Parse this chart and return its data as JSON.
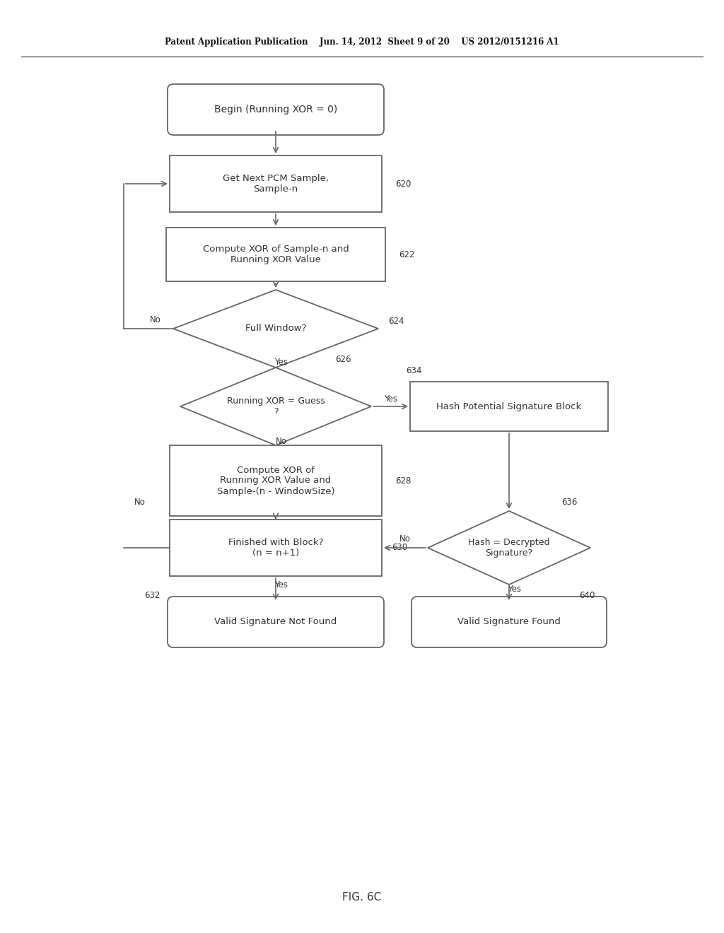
{
  "bg_color": "#ffffff",
  "line_color": "#666666",
  "text_color": "#333333",
  "header_line1": "Patent Application Publication",
  "header_line2": "Jun. 14, 2012  Sheet 9 of 20",
  "header_line3": "US 2012/0151216 A1",
  "footer_text": "FIG. 6C",
  "begin_text": "Begin (Running XOR = 0)",
  "get_sample_text": "Get Next PCM Sample,\nSample-n",
  "get_sample_ref": "620",
  "compute_xor1_text": "Compute XOR of Sample-n and\nRunning XOR Value",
  "compute_xor1_ref": "622",
  "full_window_text": "Full Window?",
  "full_window_ref": "624",
  "running_xor_text": "Running XOR = Guess\n?",
  "running_xor_ref": "626",
  "hash_block_text": "Hash Potential Signature Block",
  "hash_block_ref": "634",
  "compute_xor2_text": "Compute XOR of\nRunning XOR Value and\nSample-(n - WindowSize)",
  "compute_xor2_ref": "628",
  "finished_text": "Finished with Block?\n(n = n+1)",
  "finished_ref": "630",
  "hash_eq_text": "Hash = Decrypted\nSignature?",
  "hash_eq_ref": "636",
  "valid_not_found_text": "Valid Signature Not Found",
  "valid_not_found_ref": "632",
  "valid_found_text": "Valid Signature Found",
  "valid_found_ref": "640"
}
